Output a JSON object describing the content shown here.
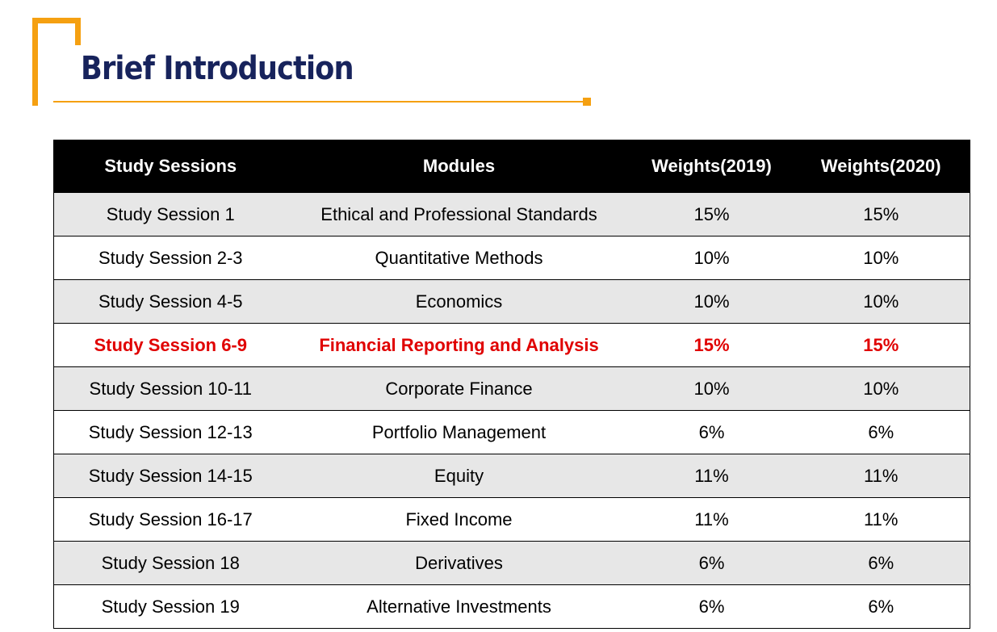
{
  "header": {
    "title": "Brief Introduction"
  },
  "table": {
    "columns": [
      "Study Sessions",
      "Modules",
      "Weights(2019)",
      "Weights(2020)"
    ],
    "rows": [
      [
        "Study Session 1",
        "Ethical and Professional Standards",
        "15%",
        "15%"
      ],
      [
        "Study Session 2-3",
        "Quantitative Methods",
        "10%",
        "10%"
      ],
      [
        "Study Session 4-5",
        "Economics",
        "10%",
        "10%"
      ],
      [
        "Study Session 6-9",
        "Financial Reporting and Analysis",
        "15%",
        "15%"
      ],
      [
        "Study Session 10-11",
        "Corporate Finance",
        "10%",
        "10%"
      ],
      [
        "Study Session 12-13",
        "Portfolio Management",
        "6%",
        "6%"
      ],
      [
        "Study Session 14-15",
        "Equity",
        "11%",
        "11%"
      ],
      [
        "Study Session 16-17",
        "Fixed Income",
        "11%",
        "11%"
      ],
      [
        "Study Session 18",
        "Derivatives",
        "6%",
        "6%"
      ],
      [
        "Study Session 19",
        "Alternative Investments",
        "6%",
        "6%"
      ]
    ]
  }
}
